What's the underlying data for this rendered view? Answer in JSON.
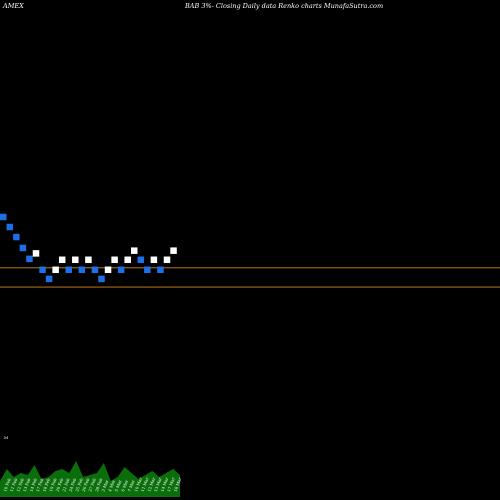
{
  "header": {
    "exchange": "AMEX",
    "title": "BAB 3%-  Closing Daily data  Renko  charts MunafaSutra.com"
  },
  "colors": {
    "background": "#000000",
    "up_brick": "#ffffff",
    "down_brick": "#1e6fe6",
    "level_line": "#d4891a",
    "volume": "#0a6e0a",
    "label_text": "#ffffff"
  },
  "chart_data": {
    "type": "renko",
    "title": "",
    "price_levels": [
      26.45,
      25.5
    ],
    "bricks": [
      {
        "dir": "down",
        "level": 29.35
      },
      {
        "dir": "down",
        "level": 28.8
      },
      {
        "dir": "down",
        "level": 28.25
      },
      {
        "dir": "down",
        "level": 27.65
      },
      {
        "dir": "down",
        "level": 27.05
      },
      {
        "dir": "up",
        "level": 27.35
      },
      {
        "dir": "down",
        "level": 26.45
      },
      {
        "dir": "down",
        "level": 25.95
      },
      {
        "dir": "up",
        "level": 26.45
      },
      {
        "dir": "up",
        "level": 27.0
      },
      {
        "dir": "down",
        "level": 26.45
      },
      {
        "dir": "up",
        "level": 27.0
      },
      {
        "dir": "down",
        "level": 26.45
      },
      {
        "dir": "up",
        "level": 27.0
      },
      {
        "dir": "down",
        "level": 26.45
      },
      {
        "dir": "down",
        "level": 25.95
      },
      {
        "dir": "up",
        "level": 26.45
      },
      {
        "dir": "up",
        "level": 27.0
      },
      {
        "dir": "down",
        "level": 26.45
      },
      {
        "dir": "up",
        "level": 27.0
      },
      {
        "dir": "up",
        "level": 27.5
      },
      {
        "dir": "down",
        "level": 27.0
      },
      {
        "dir": "down",
        "level": 26.45
      },
      {
        "dir": "up",
        "level": 27.0
      },
      {
        "dir": "down",
        "level": 26.45
      },
      {
        "dir": "up",
        "level": 27.0
      },
      {
        "dir": "up",
        "level": 27.5
      }
    ],
    "volume_label": "M",
    "volume_values": [
      0.4,
      0.7,
      0.5,
      0.6,
      0.55,
      0.8,
      0.45,
      0.5,
      0.65,
      0.7,
      0.6,
      0.9,
      0.5,
      0.55,
      0.6,
      0.85,
      0.4,
      0.5,
      0.75,
      0.6,
      0.45,
      0.55,
      0.65,
      0.5,
      0.6,
      0.7,
      0.55
    ],
    "x_labels": [
      "10 Feb",
      "11 Feb",
      "12 Feb",
      "13 Feb",
      "14 Feb",
      "17 Feb",
      "18 Feb",
      "19 Feb",
      "20 Feb",
      "21 Feb",
      "24 Feb",
      "25 Feb",
      "26 Feb",
      "27 Feb",
      "28 Feb",
      "3 Mar",
      "4 Mar",
      "5 Mar",
      "6 Mar",
      "7 Mar",
      "10 Mar",
      "11 Mar",
      "12 Mar",
      "13 Mar",
      "14 Mar",
      "17 Mar",
      "18 Mar"
    ]
  }
}
